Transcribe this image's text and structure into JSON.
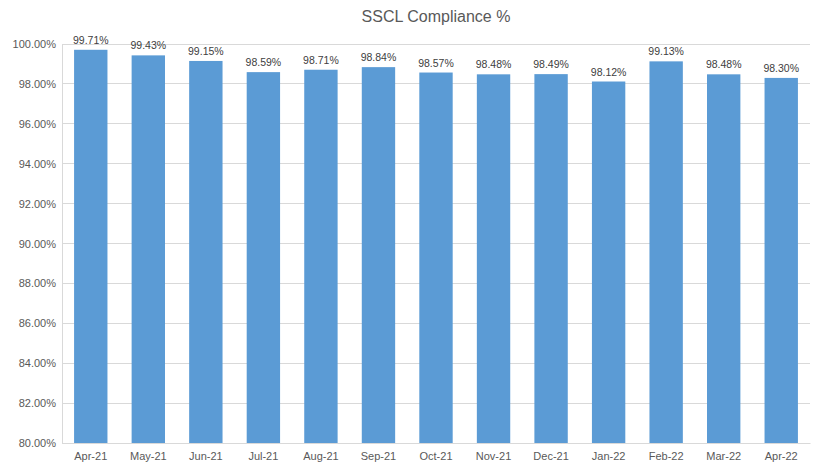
{
  "chart_data": {
    "type": "bar",
    "title": "SSCL Compliance %",
    "categories": [
      "Apr-21",
      "May-21",
      "Jun-21",
      "Jul-21",
      "Aug-21",
      "Sep-21",
      "Oct-21",
      "Nov-21",
      "Dec-21",
      "Jan-22",
      "Feb-22",
      "Mar-22",
      "Apr-22"
    ],
    "values": [
      99.71,
      99.43,
      99.15,
      98.59,
      98.71,
      98.84,
      98.57,
      98.48,
      98.49,
      98.12,
      99.13,
      98.48,
      98.3
    ],
    "value_labels": [
      "99.71%",
      "99.43%",
      "99.15%",
      "98.59%",
      "98.71%",
      "98.84%",
      "98.57%",
      "98.48%",
      "98.49%",
      "98.12%",
      "99.13%",
      "98.48%",
      "98.30%"
    ],
    "color": "#5b9bd5",
    "ylim": [
      80,
      100
    ],
    "yticks": [
      {
        "value": 80,
        "label": "80.00%"
      },
      {
        "value": 82,
        "label": "82.00%"
      },
      {
        "value": 84,
        "label": "84.00%"
      },
      {
        "value": 86,
        "label": "86.00%"
      },
      {
        "value": 88,
        "label": "88.00%"
      },
      {
        "value": 90,
        "label": "90.00%"
      },
      {
        "value": 92,
        "label": "92.00%"
      },
      {
        "value": 94,
        "label": "94.00%"
      },
      {
        "value": 96,
        "label": "96.00%"
      },
      {
        "value": 98,
        "label": "98.00%"
      },
      {
        "value": 100,
        "label": "100.00%"
      }
    ],
    "grid": true,
    "data_labels": true
  }
}
